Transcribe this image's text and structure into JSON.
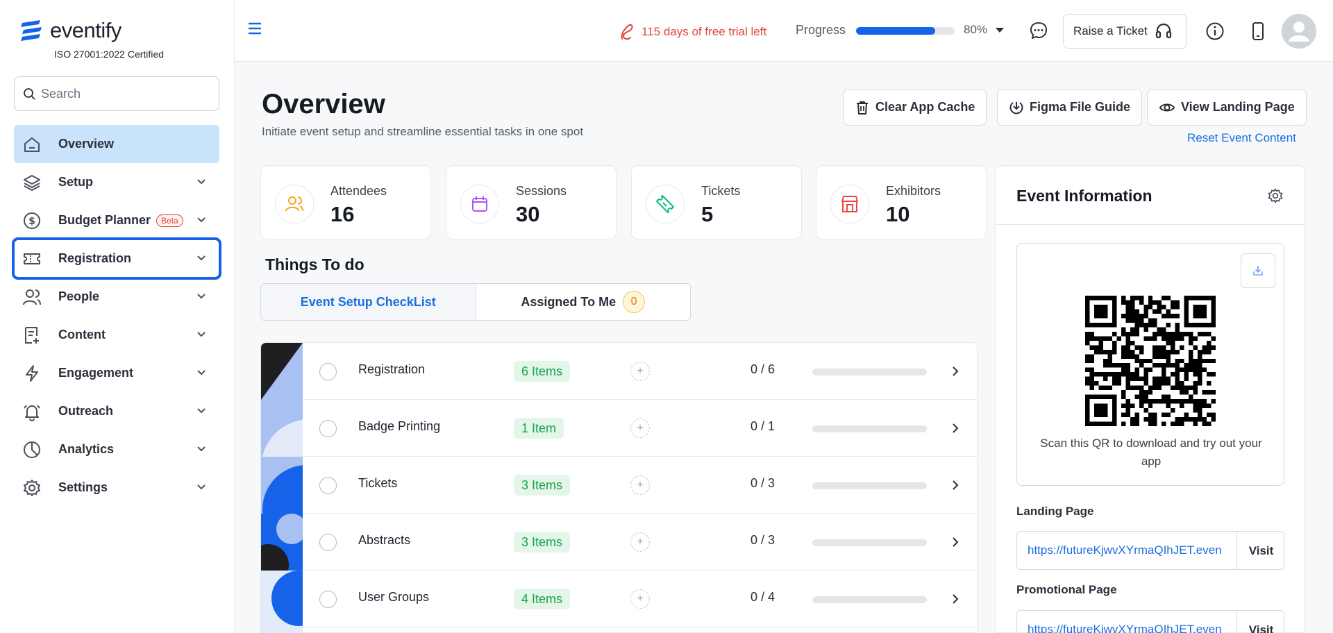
{
  "brand": {
    "name": "eventify",
    "certification": "ISO 27001:2022 Certified"
  },
  "search": {
    "placeholder": "Search"
  },
  "sidebar": {
    "items": [
      {
        "label": "Overview",
        "icon": "home-icon",
        "active": true
      },
      {
        "label": "Setup",
        "icon": "layers-icon"
      },
      {
        "label": "Budget Planner",
        "icon": "dollar-icon",
        "badge": "Beta"
      },
      {
        "label": "Registration",
        "icon": "ticket-icon",
        "focused": true
      },
      {
        "label": "People",
        "icon": "users-icon"
      },
      {
        "label": "Content",
        "icon": "document-icon"
      },
      {
        "label": "Engagement",
        "icon": "bolt-icon"
      },
      {
        "label": "Outreach",
        "icon": "bell-icon"
      },
      {
        "label": "Analytics",
        "icon": "pie-chart-icon"
      },
      {
        "label": "Settings",
        "icon": "gear-icon"
      }
    ]
  },
  "topbar": {
    "trial_text": "115 days of free trial left",
    "progress_label": "Progress",
    "progress_value": 0.8,
    "progress_pct": "80%",
    "ticket_button": "Raise a Ticket"
  },
  "header": {
    "title": "Overview",
    "subtitle": "Initiate event setup and streamline essential tasks in one spot",
    "buttons": {
      "clear_cache": "Clear App Cache",
      "figma_guide": "Figma File Guide",
      "landing": "View Landing Page"
    },
    "reset_link": "Reset Event Content"
  },
  "stats": [
    {
      "label": "Attendees",
      "value": "16",
      "color": "#f2a71b"
    },
    {
      "label": "Sessions",
      "value": "30",
      "color": "#a855f7"
    },
    {
      "label": "Tickets",
      "value": "5",
      "color": "#10b981"
    },
    {
      "label": "Exhibitors",
      "value": "10",
      "color": "#ef4444"
    }
  ],
  "todo": {
    "title": "Things To do",
    "tabs": {
      "checklist": "Event Setup CheckList",
      "assigned": "Assigned To Me",
      "assigned_count": "0"
    },
    "rows": [
      {
        "name": "Registration",
        "items": "6 Items",
        "ratio": "0 / 6"
      },
      {
        "name": "Badge Printing",
        "items": "1 Item",
        "ratio": "0 / 1"
      },
      {
        "name": "Tickets",
        "items": "3 Items",
        "ratio": "0 / 3"
      },
      {
        "name": "Abstracts",
        "items": "3 Items",
        "ratio": "0 / 3"
      },
      {
        "name": "User Groups",
        "items": "4 Items",
        "ratio": "0 / 4"
      }
    ]
  },
  "event_info": {
    "title": "Event Information",
    "qr_caption": "Scan this QR to download and try out your app",
    "landing_label": "Landing Page",
    "landing_url": "https://futureKjwvXYrmaQIhJET.even",
    "promo_label": "Promotional Page",
    "promo_url": "https://futureKjwvXYrmaQIhJET.even",
    "visit": "Visit"
  },
  "colors": {
    "accent": "#1662e8",
    "active_nav": "#c9e3fb",
    "trial": "#e0443e",
    "green_badge": "#16a34a"
  }
}
